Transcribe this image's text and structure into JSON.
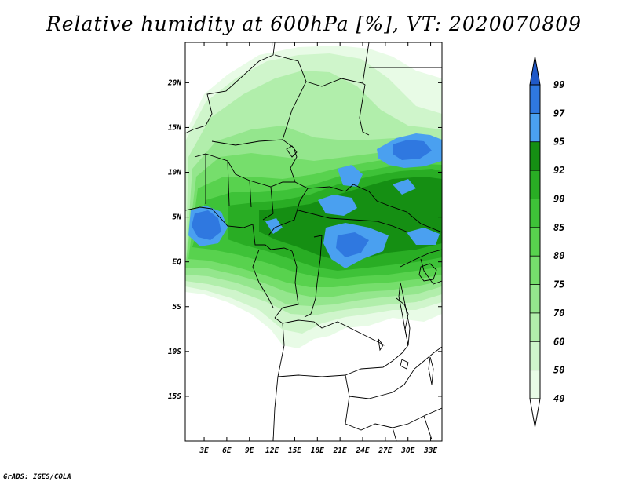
{
  "title": "Relative humidity at 600hPa [%], VT: 2020070809",
  "credit": "GrADS: IGES/COLA",
  "map": {
    "lat_labels": [
      "20N",
      "15N",
      "10N",
      "5N",
      "EQ",
      "5S",
      "10S",
      "15S"
    ],
    "lat_values": [
      20,
      15,
      10,
      5,
      0,
      -5,
      -10,
      -15
    ],
    "lon_labels": [
      "3E",
      "6E",
      "9E",
      "12E",
      "15E",
      "18E",
      "21E",
      "24E",
      "27E",
      "30E",
      "33E"
    ],
    "lon_values": [
      3,
      6,
      9,
      12,
      15,
      18,
      21,
      24,
      27,
      30,
      33
    ],
    "lon_range": [
      0.5,
      34.5
    ],
    "lat_range": [
      -20,
      24.5
    ]
  },
  "colorbar": {
    "levels": [
      "40",
      "50",
      "60",
      "70",
      "75",
      "80",
      "85",
      "90",
      "92",
      "95",
      "97",
      "99"
    ],
    "colors": [
      "#e8fbe6",
      "#cff5cb",
      "#b1eeab",
      "#94e68d",
      "#76de6c",
      "#58d24e",
      "#3ec238",
      "#29ad24",
      "#158f13",
      "#4aa0f0",
      "#2f78e0",
      "#2059c8"
    ]
  }
}
